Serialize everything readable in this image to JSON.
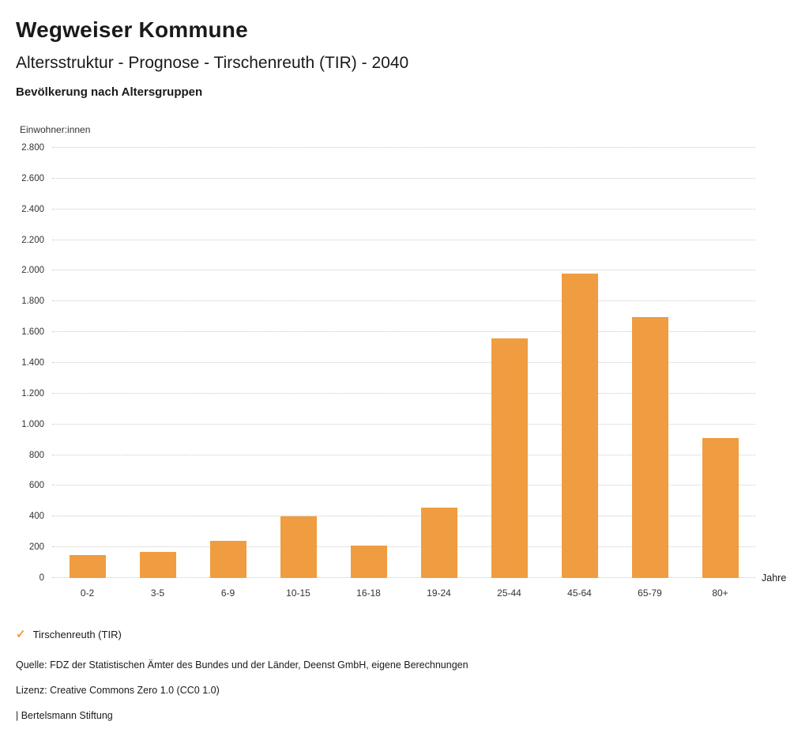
{
  "header": {
    "title": "Wegweiser Kommune",
    "subtitle": "Altersstruktur - Prognose - Tirschenreuth (TIR) - 2040",
    "chart_heading": "Bevölkerung nach Altersgruppen"
  },
  "chart_data": {
    "type": "bar",
    "title": "Bevölkerung nach Altersgruppen",
    "categories": [
      "0-2",
      "3-5",
      "6-9",
      "10-15",
      "16-18",
      "19-24",
      "25-44",
      "45-64",
      "65-79",
      "80+"
    ],
    "values": [
      150,
      170,
      240,
      400,
      210,
      460,
      1560,
      1980,
      1700,
      910
    ],
    "series_name": "Tirschenreuth (TIR)",
    "xlabel": "Jahre",
    "ylabel": "Einwohner:innen",
    "ylim": [
      0,
      2800
    ],
    "ytick_step": 200,
    "ytick_labels": [
      "0",
      "200",
      "400",
      "600",
      "800",
      "1.000",
      "1.200",
      "1.400",
      "1.600",
      "1.800",
      "2.000",
      "2.200",
      "2.400",
      "2.600",
      "2.800"
    ],
    "bar_color": "#ef9d40",
    "grid": "horizontal-dotted",
    "legend_position": "bottom-left"
  },
  "legend": {
    "check_icon": "✓",
    "label": "Tirschenreuth (TIR)",
    "color": "#ef9d40"
  },
  "footer": {
    "source": "Quelle: FDZ der Statistischen Ämter des Bundes und der Länder, Deenst GmbH, eigene Berechnungen",
    "license": "Lizenz: Creative Commons Zero 1.0 (CC0 1.0)",
    "attribution": "| Bertelsmann Stiftung"
  }
}
